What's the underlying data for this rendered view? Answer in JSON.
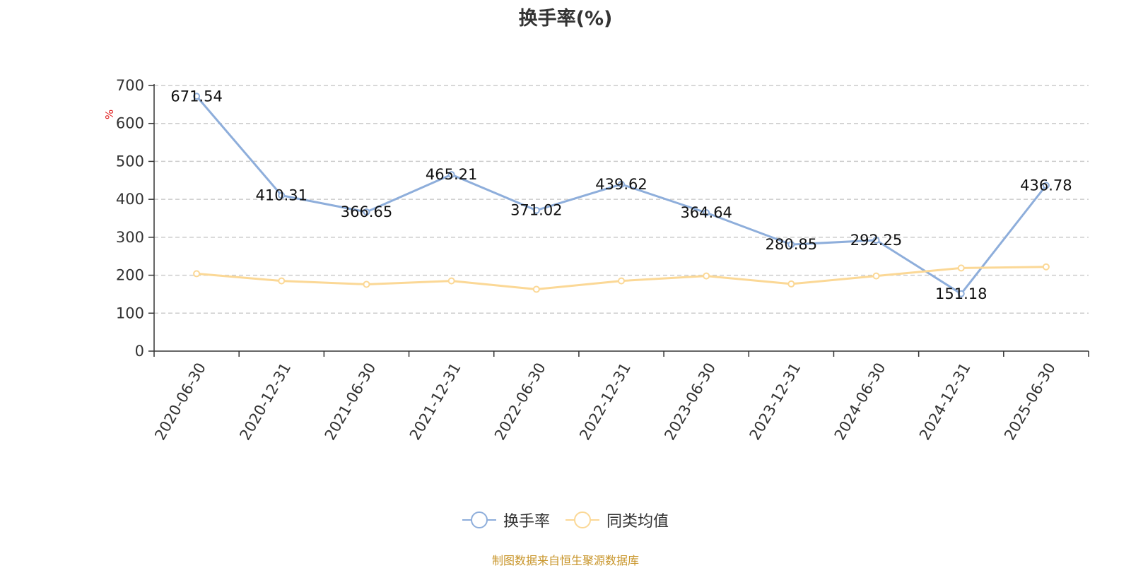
{
  "title": "换手率(%)",
  "source_note": "制图数据来自恒生聚源数据库",
  "chart_data": {
    "type": "line",
    "title": "换手率(%)",
    "ylabel": "%",
    "xlabel": "",
    "ylim": [
      0,
      700
    ],
    "yticks": [
      0,
      100,
      200,
      300,
      400,
      500,
      600,
      700
    ],
    "grid": true,
    "legend_position": "bottom",
    "categories": [
      "2020-06-30",
      "2020-12-31",
      "2021-06-30",
      "2021-12-31",
      "2022-06-30",
      "2022-12-31",
      "2023-06-30",
      "2023-12-31",
      "2024-06-30",
      "2024-12-31",
      "2025-06-30"
    ],
    "series": [
      {
        "name": "换手率",
        "color": "#8eaedb",
        "values": [
          671.54,
          410.31,
          366.65,
          465.21,
          371.02,
          439.62,
          364.64,
          280.85,
          292.25,
          151.18,
          436.78
        ],
        "labels": [
          "671.54",
          "410.31",
          "366.65",
          "465.21",
          "371.02",
          "439.62",
          "364.64",
          "280.85",
          "292.25",
          "151.18",
          "436.78"
        ]
      },
      {
        "name": "同类均值",
        "color": "#fbd896",
        "values": [
          204,
          185,
          176,
          185,
          163,
          185,
          198,
          177,
          198,
          219,
          222
        ]
      }
    ]
  }
}
